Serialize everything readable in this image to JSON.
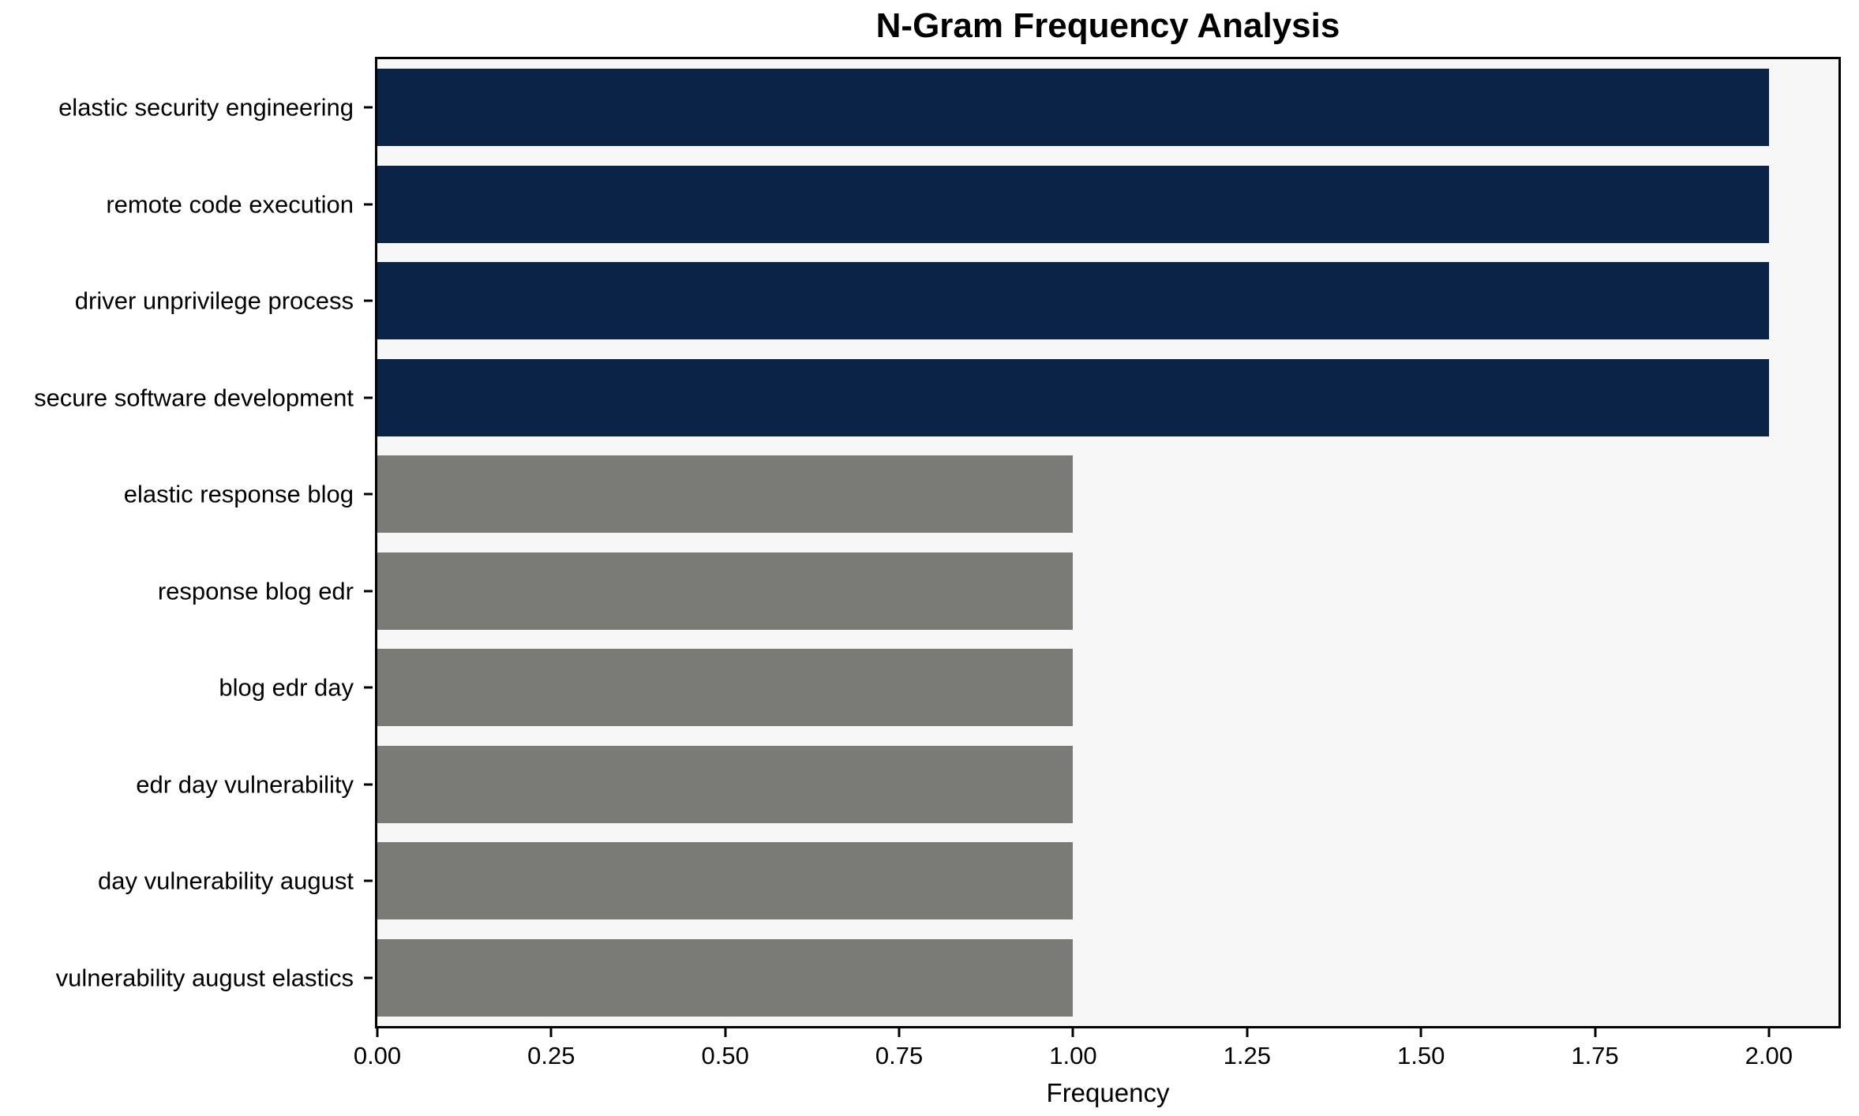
{
  "chart_data": {
    "type": "bar",
    "orientation": "horizontal",
    "title": "N-Gram Frequency Analysis",
    "xlabel": "Frequency",
    "ylabel": "",
    "categories": [
      "elastic security engineering",
      "remote code execution",
      "driver unprivilege process",
      "secure software development",
      "elastic response blog",
      "response blog edr",
      "blog edr day",
      "edr day vulnerability",
      "day vulnerability august",
      "vulnerability august elastics"
    ],
    "values": [
      2,
      2,
      2,
      2,
      1,
      1,
      1,
      1,
      1,
      1
    ],
    "bar_color_keys": [
      "high",
      "high",
      "high",
      "high",
      "low",
      "low",
      "low",
      "low",
      "low",
      "low"
    ],
    "xlim": [
      0,
      2.1
    ],
    "xticks": [
      0,
      0.25,
      0.5,
      0.75,
      1.0,
      1.25,
      1.5,
      1.75,
      2.0
    ],
    "xtick_labels": [
      "0.00",
      "0.25",
      "0.50",
      "0.75",
      "1.00",
      "1.25",
      "1.50",
      "1.75",
      "2.00"
    ],
    "grid": false,
    "legend": false,
    "bar_height_fraction": 0.8,
    "colors": {
      "high": "#0b2347",
      "low": "#7a7a77",
      "plot_background": "#f7f7f7",
      "spine": "#000000",
      "text": "#000000",
      "figure_background": "#ffffff"
    }
  }
}
